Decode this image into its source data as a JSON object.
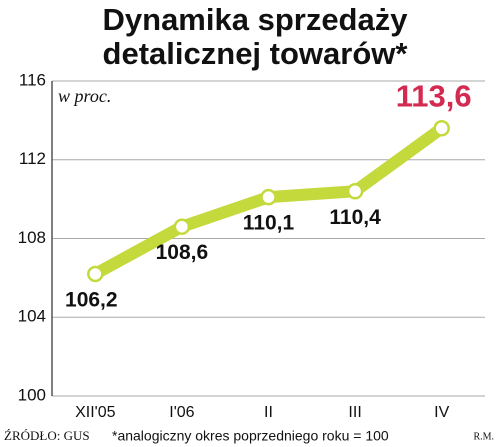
{
  "chart_data": {
    "type": "line",
    "title": [
      "Dynamika sprzedaży",
      "detalicznej towarów*"
    ],
    "unit_label": "w proc.",
    "categories": [
      "XII'05",
      "I'06",
      "II",
      "III",
      "IV"
    ],
    "values": [
      106.2,
      108.6,
      110.1,
      110.4,
      113.6
    ],
    "value_labels": [
      "106,2",
      "108,6",
      "110,1",
      "110,4",
      "113,6"
    ],
    "color": "#c4d93c",
    "highlight_color": "#d42a52",
    "ylim": [
      100,
      116
    ],
    "yticks": [
      100,
      104,
      108,
      112,
      116
    ],
    "grid": true,
    "source": "ŹRÓDŁO: GUS",
    "footnote": "*analogiczny okres poprzedniego roku = 100",
    "credit": "R.M."
  }
}
